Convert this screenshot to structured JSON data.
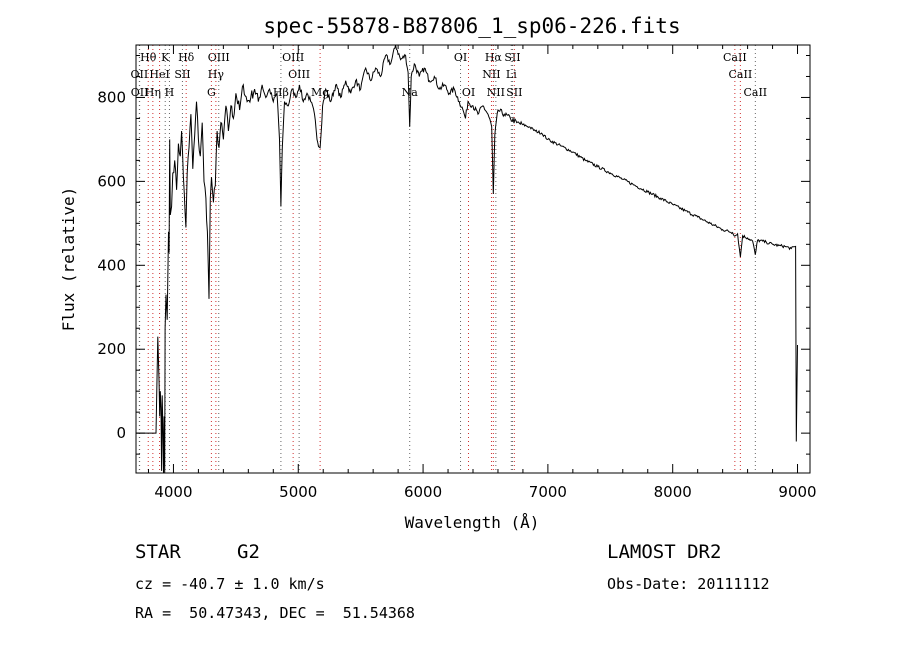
{
  "chart_data": {
    "type": "line",
    "title": "spec-55878-B87806_1_sp06-226.fits",
    "xlabel": "Wavelength (Å)",
    "ylabel": "Flux (relative)",
    "xlim": [
      3700,
      9100
    ],
    "ylim": [
      -95,
      925
    ],
    "xticks": [
      4000,
      5000,
      6000,
      7000,
      8000,
      9000
    ],
    "yticks": [
      0,
      200,
      400,
      600,
      800
    ],
    "grid": false,
    "series": [
      {
        "points": [
          [
            3700,
            0
          ],
          [
            3860,
            0
          ],
          [
            3875,
            230
          ],
          [
            3885,
            120
          ],
          [
            3890,
            40
          ],
          [
            3895,
            100
          ],
          [
            3900,
            60
          ],
          [
            3905,
            -90
          ],
          [
            3910,
            90
          ],
          [
            3915,
            20
          ],
          [
            3920,
            -95
          ],
          [
            3925,
            40
          ],
          [
            3930,
            -95
          ],
          [
            3933,
            250
          ],
          [
            3940,
            330
          ],
          [
            3950,
            270
          ],
          [
            3960,
            480
          ],
          [
            3965,
            430
          ],
          [
            3970,
            700
          ],
          [
            3975,
            520
          ],
          [
            3985,
            540
          ],
          [
            3995,
            620
          ],
          [
            4010,
            650
          ],
          [
            4025,
            580
          ],
          [
            4040,
            690
          ],
          [
            4055,
            660
          ],
          [
            4065,
            720
          ],
          [
            4080,
            610
          ],
          [
            4100,
            490
          ],
          [
            4110,
            620
          ],
          [
            4125,
            680
          ],
          [
            4140,
            760
          ],
          [
            4155,
            630
          ],
          [
            4170,
            710
          ],
          [
            4185,
            790
          ],
          [
            4200,
            700
          ],
          [
            4215,
            660
          ],
          [
            4230,
            740
          ],
          [
            4245,
            600
          ],
          [
            4260,
            560
          ],
          [
            4272,
            480
          ],
          [
            4285,
            320
          ],
          [
            4295,
            560
          ],
          [
            4305,
            610
          ],
          [
            4320,
            550
          ],
          [
            4335,
            590
          ],
          [
            4350,
            720
          ],
          [
            4365,
            680
          ],
          [
            4380,
            740
          ],
          [
            4400,
            700
          ],
          [
            4420,
            780
          ],
          [
            4440,
            720
          ],
          [
            4460,
            780
          ],
          [
            4480,
            750
          ],
          [
            4500,
            810
          ],
          [
            4530,
            770
          ],
          [
            4560,
            830
          ],
          [
            4590,
            790
          ],
          [
            4620,
            800
          ],
          [
            4650,
            820
          ],
          [
            4680,
            790
          ],
          [
            4710,
            830
          ],
          [
            4740,
            800
          ],
          [
            4770,
            820
          ],
          [
            4800,
            790
          ],
          [
            4830,
            810
          ],
          [
            4850,
            700
          ],
          [
            4861,
            540
          ],
          [
            4872,
            680
          ],
          [
            4890,
            790
          ],
          [
            4920,
            780
          ],
          [
            4950,
            820
          ],
          [
            4980,
            800
          ],
          [
            5010,
            830
          ],
          [
            5040,
            790
          ],
          [
            5070,
            810
          ],
          [
            5100,
            790
          ],
          [
            5130,
            760
          ],
          [
            5150,
            700
          ],
          [
            5175,
            680
          ],
          [
            5195,
            780
          ],
          [
            5220,
            820
          ],
          [
            5260,
            790
          ],
          [
            5300,
            830
          ],
          [
            5340,
            800
          ],
          [
            5380,
            840
          ],
          [
            5420,
            810
          ],
          [
            5460,
            840
          ],
          [
            5500,
            820
          ],
          [
            5540,
            870
          ],
          [
            5580,
            840
          ],
          [
            5620,
            870
          ],
          [
            5660,
            850
          ],
          [
            5700,
            900
          ],
          [
            5740,
            880
          ],
          [
            5780,
            925
          ],
          [
            5820,
            890
          ],
          [
            5860,
            900
          ],
          [
            5880,
            860
          ],
          [
            5893,
            730
          ],
          [
            5905,
            850
          ],
          [
            5930,
            880
          ],
          [
            5970,
            850
          ],
          [
            6010,
            870
          ],
          [
            6050,
            840
          ],
          [
            6090,
            850
          ],
          [
            6130,
            820
          ],
          [
            6170,
            830
          ],
          [
            6210,
            810
          ],
          [
            6250,
            820
          ],
          [
            6290,
            790
          ],
          [
            6320,
            770
          ],
          [
            6340,
            750
          ],
          [
            6360,
            790
          ],
          [
            6400,
            780
          ],
          [
            6440,
            760
          ],
          [
            6480,
            780
          ],
          [
            6520,
            760
          ],
          [
            6550,
            730
          ],
          [
            6563,
            570
          ],
          [
            6575,
            710
          ],
          [
            6600,
            770
          ],
          [
            6650,
            760
          ],
          [
            6700,
            750
          ],
          [
            6750,
            740
          ],
          [
            6800,
            735
          ],
          [
            6850,
            730
          ],
          [
            6900,
            720
          ],
          [
            6950,
            715
          ],
          [
            7000,
            700
          ],
          [
            7100,
            685
          ],
          [
            7200,
            670
          ],
          [
            7300,
            650
          ],
          [
            7400,
            635
          ],
          [
            7500,
            620
          ],
          [
            7600,
            605
          ],
          [
            7700,
            590
          ],
          [
            7800,
            575
          ],
          [
            7900,
            560
          ],
          [
            8000,
            545
          ],
          [
            8100,
            530
          ],
          [
            8200,
            515
          ],
          [
            8300,
            500
          ],
          [
            8400,
            485
          ],
          [
            8480,
            478
          ],
          [
            8500,
            470
          ],
          [
            8520,
            475
          ],
          [
            8542,
            420
          ],
          [
            8560,
            470
          ],
          [
            8600,
            465
          ],
          [
            8640,
            458
          ],
          [
            8662,
            425
          ],
          [
            8680,
            460
          ],
          [
            8750,
            455
          ],
          [
            8800,
            450
          ],
          [
            8850,
            447
          ],
          [
            8900,
            445
          ],
          [
            8950,
            440
          ],
          [
            8985,
            445
          ],
          [
            8990,
            -20
          ],
          [
            9000,
            210
          ]
        ]
      }
    ],
    "line_markers": [
      {
        "label": "Hθ",
        "x": 3798,
        "row": 0
      },
      {
        "label": "K",
        "x": 3934,
        "row": 0
      },
      {
        "label": "Hδ",
        "x": 4102,
        "row": 0
      },
      {
        "label": "OIII",
        "x": 4363,
        "row": 0
      },
      {
        "label": "OIII",
        "x": 4959,
        "row": 0
      },
      {
        "label": "OI",
        "x": 6300,
        "row": 0
      },
      {
        "label": "Hα",
        "x": 6563,
        "row": 0
      },
      {
        "label": "SII",
        "x": 6716,
        "row": 0
      },
      {
        "label": "CaII",
        "x": 8498,
        "row": 0
      },
      {
        "label": "OII",
        "x": 3727,
        "row": 1
      },
      {
        "label": "HeI",
        "x": 3889,
        "row": 1
      },
      {
        "label": "SII",
        "x": 4072,
        "row": 1
      },
      {
        "label": "Hγ",
        "x": 4340,
        "row": 1
      },
      {
        "label": "OIII",
        "x": 5007,
        "row": 1
      },
      {
        "label": "NII",
        "x": 6548,
        "row": 1
      },
      {
        "label": "Li",
        "x": 6707,
        "row": 1
      },
      {
        "label": "CaII",
        "x": 8542,
        "row": 1
      },
      {
        "label": "OII",
        "x": 3729,
        "row": 2
      },
      {
        "label": "Hη",
        "x": 3835,
        "row": 2
      },
      {
        "label": "H",
        "x": 3968,
        "row": 2
      },
      {
        "label": "G",
        "x": 4304,
        "row": 2
      },
      {
        "label": "Hβ",
        "x": 4861,
        "row": 2
      },
      {
        "label": "Mg",
        "x": 5175,
        "row": 2
      },
      {
        "label": "Na",
        "x": 5893,
        "row": 2
      },
      {
        "label": "OI",
        "x": 6364,
        "row": 2
      },
      {
        "label": "NII",
        "x": 6583,
        "row": 2
      },
      {
        "label": "SII",
        "x": 6731,
        "row": 2
      },
      {
        "label": "CaII",
        "x": 8662,
        "row": 2
      }
    ],
    "colors": {
      "line": "#000000",
      "marker_line": "#d03030",
      "marker_line_alt": "#666666",
      "axis": "#000000"
    }
  },
  "info": {
    "object_class": "STAR",
    "subclass": "G2",
    "survey": "LAMOST DR2",
    "redshift": "cz = -40.7 ± 1.0 km/s",
    "obs_date": "Obs-Date: 20111112",
    "coords": "RA =  50.47343, DEC =  51.54368"
  }
}
